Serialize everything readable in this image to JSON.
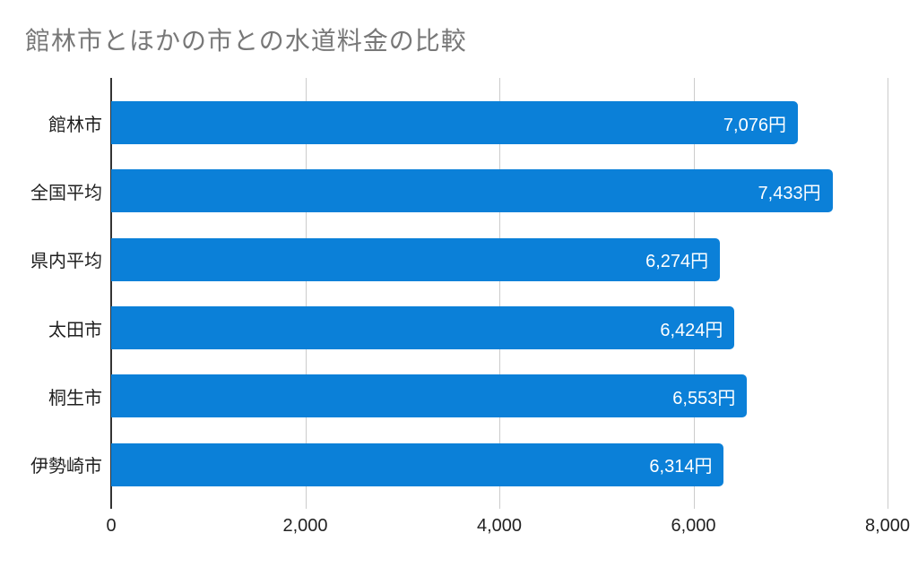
{
  "title": "館林市とほかの市との水道料金の比較",
  "chart_data": {
    "type": "bar",
    "orientation": "horizontal",
    "title": "館林市とほかの市との水道料金の比較",
    "categories": [
      "館林市",
      "全国平均",
      "県内平均",
      "太田市",
      "桐生市",
      "伊勢崎市"
    ],
    "values": [
      7076,
      7433,
      6274,
      6424,
      6553,
      6314
    ],
    "value_labels": [
      "7,076円",
      "7,433円",
      "6,274円",
      "6,424円",
      "6,553円",
      "6,314円"
    ],
    "unit": "円",
    "xlabel": "",
    "ylabel": "",
    "xlim": [
      0,
      8000
    ],
    "x_ticks": [
      "0",
      "2,000",
      "4,000",
      "6,000",
      "8,000"
    ],
    "x_tick_values": [
      0,
      2000,
      4000,
      6000,
      8000
    ],
    "grid": true,
    "legend": "none",
    "colors": {
      "bar": "#0b80d8",
      "gridline": "#cccccc",
      "axis_line": "#333333",
      "title_text": "#787878",
      "category_text": "#1f1f1f",
      "tick_text": "#222222",
      "value_text": "#ffffff",
      "background": "#ffffff"
    }
  }
}
